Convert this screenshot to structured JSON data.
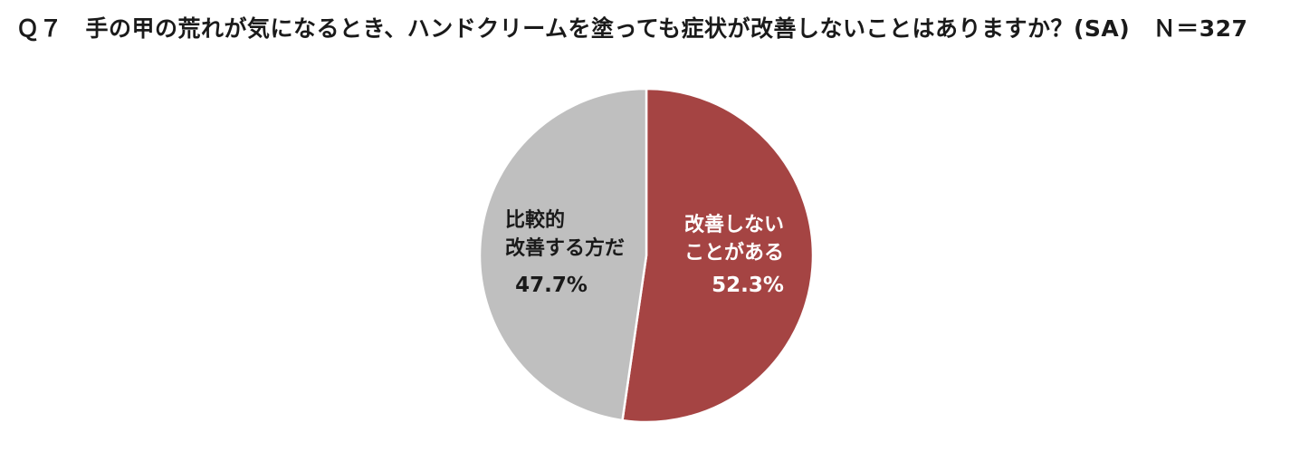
{
  "title": "Ｑ７　手の甲の荒れが気になるとき、ハンドクリームを塗っても症状が改善しないことはありますか？(SA)　Ｎ＝327",
  "chart_data": {
    "type": "pie",
    "title": "Ｑ７　手の甲の荒れが気になるとき、ハンドクリームを塗っても症状が改善しないことはありますか？(SA)　Ｎ＝327",
    "n": 327,
    "start_angle_deg": 0,
    "direction": "clockwise",
    "slices": [
      {
        "label_lines": [
          "改善しない",
          "ことがある"
        ],
        "value": 52.3,
        "value_label": "52.3%",
        "color": "#a54443",
        "text_color": "#ffffff"
      },
      {
        "label_lines": [
          "比較的",
          "改善する方だ"
        ],
        "value": 47.7,
        "value_label": "47.7%",
        "color": "#bfbfbf",
        "text_color": "#1a1a1a"
      }
    ]
  }
}
